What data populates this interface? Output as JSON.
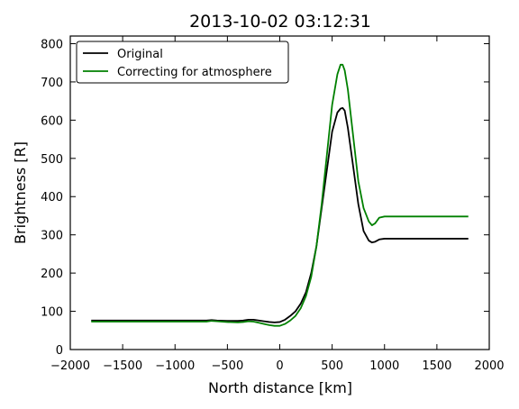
{
  "chart_data": {
    "type": "line",
    "title": "2013-10-02 03:12:31",
    "xlabel": "North distance [km]",
    "ylabel": "Brightness [R]",
    "xlim": [
      -2000,
      2000
    ],
    "ylim": [
      0,
      820
    ],
    "xticks": [
      -2000,
      -1500,
      -1000,
      -500,
      0,
      500,
      1000,
      1500,
      2000
    ],
    "yticks": [
      0,
      100,
      200,
      300,
      400,
      500,
      600,
      700,
      800
    ],
    "xtick_labels": [
      "−2000",
      "−1500",
      "−1000",
      "−500",
      "0",
      "500",
      "1000",
      "1500",
      "2000"
    ],
    "ytick_labels": [
      "0",
      "100",
      "200",
      "300",
      "400",
      "500",
      "600",
      "700",
      "800"
    ],
    "grid": false,
    "legend": "top-left",
    "series": [
      {
        "name": "Original",
        "color": "#000000",
        "x": [
          -1800,
          -1000,
          -700,
          -650,
          -600,
          -500,
          -400,
          -350,
          -300,
          -250,
          -200,
          -150,
          -100,
          -50,
          0,
          50,
          100,
          150,
          200,
          250,
          300,
          350,
          400,
          450,
          500,
          550,
          580,
          600,
          620,
          650,
          700,
          750,
          800,
          850,
          880,
          910,
          950,
          1000,
          1100,
          1200,
          1500,
          1800
        ],
        "y": [
          76,
          76,
          76,
          77,
          76,
          75,
          75,
          76,
          78,
          78,
          76,
          74,
          72,
          71,
          72,
          78,
          88,
          100,
          120,
          150,
          200,
          270,
          370,
          470,
          570,
          620,
          630,
          632,
          625,
          580,
          480,
          380,
          310,
          285,
          280,
          282,
          288,
          290,
          290,
          290,
          290,
          290
        ]
      },
      {
        "name": "Correcting for atmosphere",
        "color": "#008000",
        "x": [
          -1800,
          -1000,
          -700,
          -650,
          -600,
          -500,
          -400,
          -350,
          -300,
          -250,
          -200,
          -150,
          -100,
          -50,
          0,
          50,
          100,
          150,
          200,
          250,
          300,
          350,
          400,
          450,
          500,
          550,
          580,
          600,
          620,
          650,
          700,
          750,
          800,
          850,
          880,
          910,
          950,
          1000,
          1100,
          1200,
          1500,
          1800
        ],
        "y": [
          73,
          73,
          73,
          75,
          74,
          72,
          71,
          72,
          74,
          73,
          70,
          67,
          64,
          62,
          62,
          67,
          76,
          88,
          108,
          140,
          190,
          270,
          380,
          510,
          640,
          720,
          745,
          745,
          730,
          680,
          560,
          440,
          370,
          335,
          325,
          330,
          345,
          348,
          348,
          348,
          348,
          348
        ]
      }
    ]
  }
}
